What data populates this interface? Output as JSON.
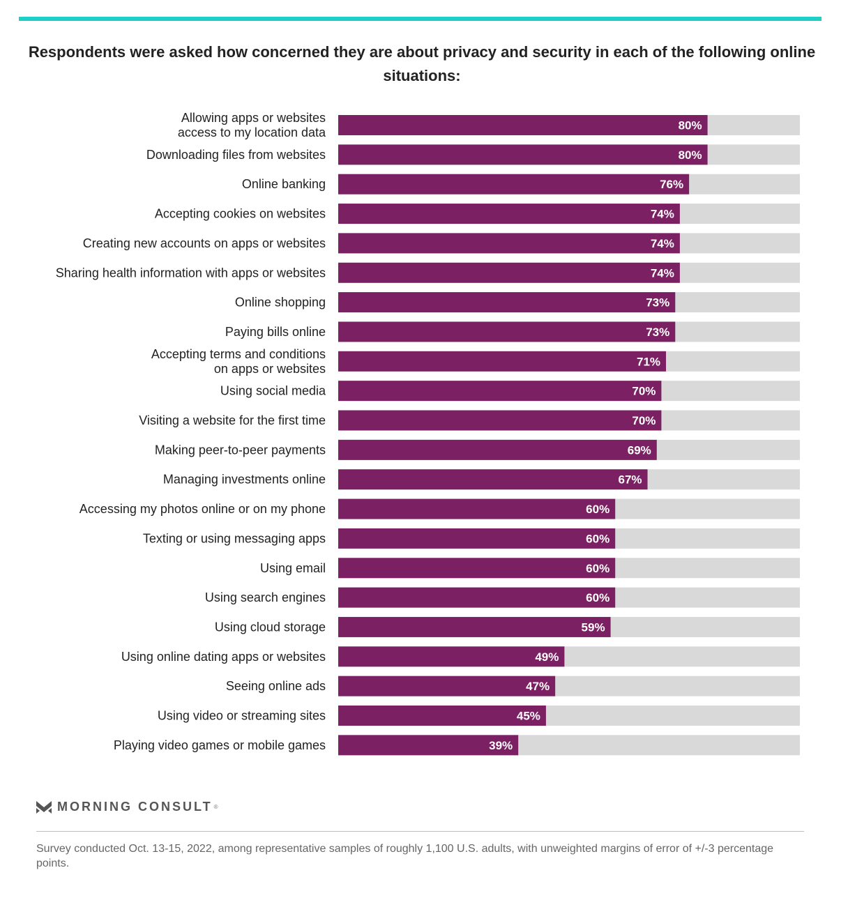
{
  "title": "Respondents were asked how concerned they are about privacy and security in each of the following online situations:",
  "colors": {
    "accent": "#1fcfc5",
    "bar": "#7b2163",
    "track": "#d9d9d9"
  },
  "brand": {
    "name": "MORNING CONSULT",
    "mark": "®",
    "icon": "morning-consult-logo-icon"
  },
  "footnote": "Survey conducted Oct. 13-15, 2022, among representative samples of roughly 1,100 U.S. adults, with unweighted margins of error of +/-3 percentage points.",
  "chart_data": {
    "type": "bar",
    "orientation": "horizontal",
    "xlim": [
      0,
      100
    ],
    "grid": false,
    "legend": "none",
    "categories": [
      [
        "Allowing apps or websites",
        "access to my location data"
      ],
      [
        "Downloading files from websites"
      ],
      [
        "Online banking"
      ],
      [
        "Accepting cookies on websites"
      ],
      [
        "Creating new accounts on apps or websites"
      ],
      [
        "Sharing health information with apps or websites"
      ],
      [
        "Online shopping"
      ],
      [
        "Paying bills online"
      ],
      [
        "Accepting terms and conditions",
        "on apps or websites"
      ],
      [
        "Using social media"
      ],
      [
        "Visiting a website for the first time"
      ],
      [
        "Making peer-to-peer payments"
      ],
      [
        "Managing investments online"
      ],
      [
        "Accessing my photos online or on my phone"
      ],
      [
        "Texting or using messaging apps"
      ],
      [
        "Using email"
      ],
      [
        "Using search engines"
      ],
      [
        "Using cloud storage"
      ],
      [
        "Using online dating apps or websites"
      ],
      [
        "Seeing online ads"
      ],
      [
        "Using video or streaming sites"
      ],
      [
        "Playing video games or mobile games"
      ]
    ],
    "values": [
      80,
      80,
      76,
      74,
      74,
      74,
      73,
      73,
      71,
      70,
      70,
      69,
      67,
      60,
      60,
      60,
      60,
      59,
      49,
      47,
      45,
      39
    ],
    "value_labels": [
      "80%",
      "80%",
      "76%",
      "74%",
      "74%",
      "74%",
      "73%",
      "73%",
      "71%",
      "70%",
      "70%",
      "69%",
      "67%",
      "60%",
      "60%",
      "60%",
      "60%",
      "59%",
      "49%",
      "47%",
      "45%",
      "39%"
    ]
  }
}
